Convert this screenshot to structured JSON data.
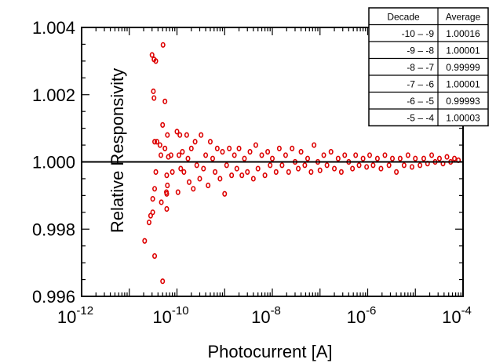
{
  "chart_data": {
    "type": "scatter",
    "title": "",
    "xlabel": "Photocurrent [A]",
    "ylabel": "Relative Responsivity",
    "x_scale": "log",
    "xlim": [
      1e-12,
      0.0001
    ],
    "ylim": [
      0.996,
      1.004
    ],
    "x_ticks": [
      {
        "base": "10",
        "exp": "-12",
        "value": 1e-12
      },
      {
        "base": "10",
        "exp": "-10",
        "value": 1e-10
      },
      {
        "base": "10",
        "exp": "-8",
        "value": 1e-08
      },
      {
        "base": "10",
        "exp": "-6",
        "value": 1e-06
      },
      {
        "base": "10",
        "exp": "-4",
        "value": 0.0001
      }
    ],
    "y_ticks": [
      {
        "label": "0.996",
        "value": 0.996
      },
      {
        "label": "0.998",
        "value": 0.998
      },
      {
        "label": "1.000",
        "value": 1.0
      },
      {
        "label": "1.002",
        "value": 1.002
      },
      {
        "label": "1.004",
        "value": 1.004
      }
    ],
    "reference_line": {
      "y": 1.0,
      "color": "#000000"
    },
    "marker_color": "#dd0000",
    "grid": false,
    "legend": "none",
    "table": {
      "placement": "top-right",
      "headers": [
        "Decade",
        "Average"
      ],
      "rows": [
        {
          "decade": "-10  –  -9",
          "average": "1.00016"
        },
        {
          "decade": "-9  –  -8",
          "average": "1.00001"
        },
        {
          "decade": "-8  –  -7",
          "average": "0.99999"
        },
        {
          "decade": "-7  –  -6",
          "average": "1.00001"
        },
        {
          "decade": "-6  –  -5",
          "average": "0.99993"
        },
        {
          "decade": "-5  –  -4",
          "average": "1.00003"
        }
      ]
    },
    "series": [
      {
        "points": [
          [
            2.1e-11,
            0.99765
          ],
          [
            2.6e-11,
            0.9982
          ],
          [
            2.8e-11,
            0.9984
          ],
          [
            3.1e-11,
            0.9985
          ],
          [
            3e-11,
            1.00318
          ],
          [
            3.3e-11,
            1.00305
          ],
          [
            3.6e-11,
            1.003
          ],
          [
            3.2e-11,
            1.0021
          ],
          [
            3.3e-11,
            1.0019
          ],
          [
            3.4e-11,
            0.9992
          ],
          [
            3.6e-11,
            0.9997
          ],
          [
            3.4e-11,
            1.0006
          ],
          [
            3.8e-11,
            1.0006
          ],
          [
            3.1e-11,
            0.9989
          ],
          [
            3.4e-11,
            0.9972
          ],
          [
            4.4e-11,
            1.0005
          ],
          [
            4.6e-11,
            1.0002
          ],
          [
            4.7e-11,
            0.9988
          ],
          [
            5e-11,
            0.99645
          ],
          [
            5.1e-11,
            1.00348
          ],
          [
            5e-11,
            1.0011
          ],
          [
            5.6e-11,
            1.0018
          ],
          [
            5.6e-11,
            1.0004
          ],
          [
            6.1e-11,
            0.9996
          ],
          [
            6e-11,
            0.9991
          ],
          [
            6.3e-11,
            1.0008
          ],
          [
            6.6e-11,
            1.00015
          ],
          [
            6.1e-11,
            0.9986
          ],
          [
            6.1e-11,
            0.99905
          ],
          [
            6.3e-11,
            0.9993
          ],
          [
            7.5e-11,
            1.0002
          ],
          [
            8e-11,
            0.9997
          ],
          [
            1e-10,
            1.0009
          ],
          [
            1.05e-10,
            0.9991
          ],
          [
            1.1e-10,
            1.0002
          ],
          [
            1.15e-10,
            1.0008
          ],
          [
            1.2e-10,
            0.9998
          ],
          [
            1.3e-10,
            1.0003
          ],
          [
            1.4e-10,
            0.9997
          ],
          [
            1.6e-10,
            1.0008
          ],
          [
            1.7e-10,
            1.0001
          ],
          [
            1.8e-10,
            0.9994
          ],
          [
            2e-10,
            1.0004
          ],
          [
            2.2e-10,
            0.9992
          ],
          [
            2.4e-10,
            1.0006
          ],
          [
            2.6e-10,
            0.9999
          ],
          [
            3e-10,
            0.9995
          ],
          [
            3.2e-10,
            1.0008
          ],
          [
            3.6e-10,
            0.9998
          ],
          [
            4e-10,
            1.0002
          ],
          [
            4.5e-10,
            0.9993
          ],
          [
            5e-10,
            1.0006
          ],
          [
            5.6e-10,
            1.0001
          ],
          [
            6.3e-10,
            0.9997
          ],
          [
            7e-10,
            1.0004
          ],
          [
            8e-10,
            0.9995
          ],
          [
            9e-10,
            1.0003
          ],
          [
            1e-09,
            0.99905
          ],
          [
            1.1e-09,
            0.9999
          ],
          [
            1.25e-09,
            1.0004
          ],
          [
            1.4e-09,
            0.9996
          ],
          [
            1.6e-09,
            1.0002
          ],
          [
            1.8e-09,
            0.9998
          ],
          [
            2e-09,
            1.0004
          ],
          [
            2.3e-09,
            0.9996
          ],
          [
            2.6e-09,
            1.0001
          ],
          [
            3e-09,
            0.9997
          ],
          [
            3.4e-09,
            1.0003
          ],
          [
            4e-09,
            0.9995
          ],
          [
            4.5e-09,
            1.0005
          ],
          [
            5e-09,
            0.9998
          ],
          [
            6e-09,
            1.0002
          ],
          [
            7e-09,
            0.9996
          ],
          [
            8e-09,
            1.0003
          ],
          [
            9e-09,
            0.9999
          ],
          [
            1e-08,
            1.0001
          ],
          [
            1.2e-08,
            0.9997
          ],
          [
            1.4e-08,
            1.0004
          ],
          [
            1.6e-08,
            0.9999
          ],
          [
            1.9e-08,
            1.0002
          ],
          [
            2.2e-08,
            0.9997
          ],
          [
            2.6e-08,
            1.0004
          ],
          [
            3e-08,
            1.0
          ],
          [
            3.5e-08,
            0.9998
          ],
          [
            4e-08,
            1.0003
          ],
          [
            4.8e-08,
            0.9999
          ],
          [
            5.5e-08,
            1.0001
          ],
          [
            6.5e-08,
            0.9997
          ],
          [
            7.5e-08,
            1.0005
          ],
          [
            9e-08,
            1.0
          ],
          [
            1e-07,
            0.99975
          ],
          [
            1.2e-07,
            1.0002
          ],
          [
            1.4e-07,
            0.9999
          ],
          [
            1.7e-07,
            1.0003
          ],
          [
            2e-07,
            0.9998
          ],
          [
            2.4e-07,
            1.0001
          ],
          [
            2.8e-07,
            0.9997
          ],
          [
            3.3e-07,
            1.0002
          ],
          [
            4e-07,
            1.0
          ],
          [
            4.8e-07,
            0.9998
          ],
          [
            5.6e-07,
            1.0002
          ],
          [
            6.6e-07,
            0.9999
          ],
          [
            8e-07,
            1.0001
          ],
          [
            9.5e-07,
            0.99985
          ],
          [
            1.1e-06,
            1.0002
          ],
          [
            1.3e-06,
            0.9999
          ],
          [
            1.6e-06,
            1.0001
          ],
          [
            1.9e-06,
            0.9998
          ],
          [
            2.3e-06,
            1.0002
          ],
          [
            2.8e-06,
            0.9999
          ],
          [
            3.3e-06,
            1.0001
          ],
          [
            4e-06,
            0.9997
          ],
          [
            4.8e-06,
            1.0001
          ],
          [
            5.8e-06,
            0.9999
          ],
          [
            7e-06,
            1.0002
          ],
          [
            8.5e-06,
            0.99985
          ],
          [
            1e-05,
            1.0001
          ],
          [
            1.25e-05,
            0.9999
          ],
          [
            1.5e-05,
            1.0001
          ],
          [
            1.8e-05,
            0.99995
          ],
          [
            2.2e-05,
            1.0002
          ],
          [
            2.6e-05,
            1.0
          ],
          [
            3.2e-05,
            1.0001
          ],
          [
            3.8e-05,
            0.99995
          ],
          [
            4.6e-05,
            1.00015
          ],
          [
            5.5e-05,
            1.0
          ],
          [
            6.6e-05,
            1.0001
          ],
          [
            8e-05,
            1.00005
          ]
        ]
      }
    ]
  }
}
